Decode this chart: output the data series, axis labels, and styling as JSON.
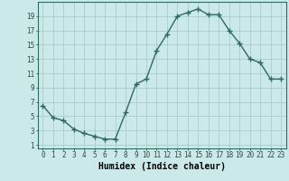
{
  "x": [
    0,
    1,
    2,
    3,
    4,
    5,
    6,
    7,
    8,
    9,
    10,
    11,
    12,
    13,
    14,
    15,
    16,
    17,
    18,
    19,
    20,
    21,
    22,
    23
  ],
  "y": [
    6.5,
    4.8,
    4.4,
    3.2,
    2.6,
    2.2,
    1.8,
    1.8,
    5.5,
    9.5,
    10.2,
    14.2,
    16.5,
    19.0,
    19.5,
    20.0,
    19.2,
    19.2,
    17.0,
    15.2,
    13.0,
    12.5,
    10.2,
    10.2
  ],
  "line_color": "#2e6b5e",
  "marker": "+",
  "marker_size": 4,
  "marker_edge_width": 1.0,
  "bg_color": "#cce9e9",
  "grid_color": "#aacccc",
  "xlabel": "Humidex (Indice chaleur)",
  "xlabel_fontsize": 7,
  "ytick_labels": [
    "1",
    "3",
    "5",
    "7",
    "9",
    "11",
    "13",
    "15",
    "17",
    "19"
  ],
  "ytick_values": [
    1,
    3,
    5,
    7,
    9,
    11,
    13,
    15,
    17,
    19
  ],
  "ylim": [
    0.5,
    21.0
  ],
  "xlim": [
    -0.5,
    23.5
  ],
  "xtick_values": [
    0,
    1,
    2,
    3,
    4,
    5,
    6,
    7,
    8,
    9,
    10,
    11,
    12,
    13,
    14,
    15,
    16,
    17,
    18,
    19,
    20,
    21,
    22,
    23
  ],
  "xtick_labels": [
    "0",
    "1",
    "2",
    "3",
    "4",
    "5",
    "6",
    "7",
    "8",
    "9",
    "10",
    "11",
    "12",
    "13",
    "14",
    "15",
    "16",
    "17",
    "18",
    "19",
    "20",
    "21",
    "22",
    "23"
  ],
  "tick_fontsize": 5.5,
  "line_width": 1.0
}
